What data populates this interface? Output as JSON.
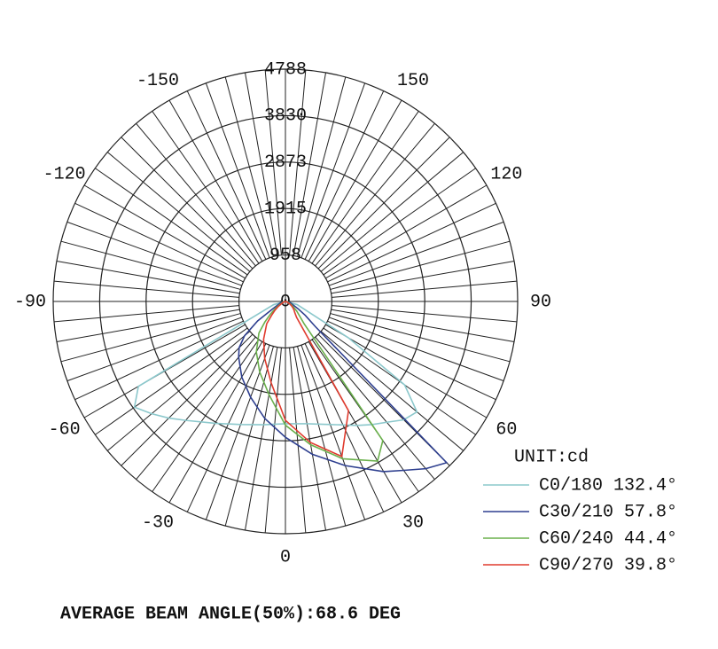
{
  "chart_data": {
    "type": "polar",
    "rlim": [
      0,
      4788
    ],
    "rticks": [
      0,
      958,
      1915,
      2873,
      3830,
      4788
    ],
    "angle_ticks": [
      -150,
      -120,
      -90,
      -60,
      -30,
      0,
      30,
      60,
      90,
      120,
      150
    ],
    "legend_title": "UNIT:cd",
    "note": "AVERAGE BEAM ANGLE(50%):68.6 DEG",
    "x": [
      -90,
      -75,
      -60,
      -55,
      -50,
      -45,
      -40,
      -30,
      -20,
      -10,
      0,
      10,
      20,
      30,
      35,
      40,
      45,
      50,
      55,
      60,
      75,
      90
    ],
    "series": [
      {
        "name": "C0/180 132.4°",
        "color": "#8cc8cc",
        "values": [
          0,
          250,
          3500,
          3800,
          3600,
          3400,
          3200,
          2900,
          2700,
          2580,
          2520,
          2560,
          2700,
          2950,
          3100,
          3250,
          3450,
          3540,
          3000,
          1500,
          250,
          0
        ]
      },
      {
        "name": "C30/210 57.8°",
        "color": "#2e3f8f",
        "values": [
          0,
          100,
          300,
          700,
          1100,
          1350,
          1500,
          1800,
          2100,
          2450,
          2800,
          3200,
          3600,
          4050,
          4250,
          4500,
          4700,
          800,
          500,
          300,
          100,
          0
        ]
      },
      {
        "name": "C60/240 44.4°",
        "color": "#6ab04c",
        "values": [
          0,
          50,
          150,
          250,
          400,
          600,
          850,
          1200,
          1550,
          1950,
          2550,
          3000,
          3450,
          3800,
          3500,
          600,
          400,
          300,
          200,
          150,
          50,
          0
        ]
      },
      {
        "name": "C90/270 39.8°",
        "color": "#e03b2e",
        "values": [
          0,
          30,
          100,
          180,
          280,
          400,
          600,
          900,
          1250,
          1700,
          2450,
          2950,
          3400,
          2600,
          400,
          300,
          250,
          200,
          150,
          100,
          30,
          0
        ]
      }
    ]
  }
}
